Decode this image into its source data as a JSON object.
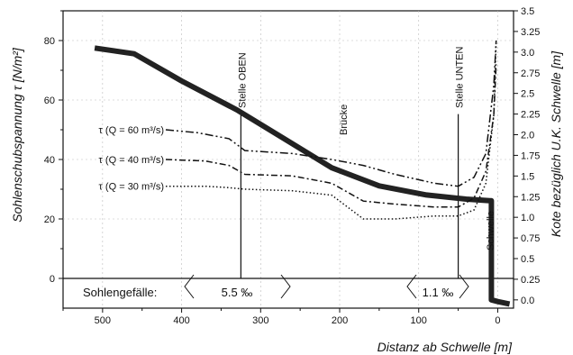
{
  "chart_data": {
    "type": "line",
    "xlabel": "Distanz ab Schwelle  [m]",
    "ylabel_left": "Sohlenschubspannung τ  [N/m²]",
    "ylabel_right": "Kote bezüglich U.K. Schwelle  [m]",
    "xlim": [
      550,
      -20
    ],
    "ylim_left": [
      -10,
      90
    ],
    "ylim_right": [
      -0.1,
      3.5
    ],
    "x_ticks": [
      500,
      400,
      300,
      200,
      100,
      0
    ],
    "y_ticks_left": [
      0,
      20,
      40,
      60,
      80
    ],
    "y_ticks_right": [
      "0.0",
      "0.25",
      "0.5",
      "0.75",
      "1.0",
      "1.25",
      "1.5",
      "1.75",
      "2.0",
      "2.25",
      "2.5",
      "2.75",
      "3.0",
      "3.25",
      "3.5"
    ],
    "grid": true,
    "series": [
      {
        "name": "",
        "axis": "right",
        "style": "thick",
        "x": [
          510,
          460,
          400,
          330,
          270,
          210,
          150,
          90,
          40,
          10,
          8,
          8,
          0,
          -15
        ],
        "y": [
          3.05,
          2.98,
          2.65,
          2.3,
          1.95,
          1.6,
          1.38,
          1.27,
          1.22,
          1.2,
          1.2,
          0.0,
          -0.02,
          -0.05
        ]
      },
      {
        "name": "τ (Q = 60 m³/s)",
        "axis": "left",
        "style": "dash-dot-dot",
        "x": [
          420,
          380,
          340,
          320,
          260,
          210,
          170,
          130,
          80,
          50,
          30,
          15,
          5,
          2
        ],
        "y": [
          50,
          49,
          47,
          43,
          42,
          40,
          38,
          35,
          32,
          31,
          34,
          42,
          65,
          80
        ]
      },
      {
        "name": "τ (Q = 40 m³/s)",
        "axis": "left",
        "style": "dash-dot",
        "x": [
          420,
          370,
          340,
          320,
          260,
          210,
          170,
          130,
          80,
          50,
          30,
          15,
          5,
          2
        ],
        "y": [
          40,
          39.5,
          38,
          35,
          34.5,
          32,
          26,
          25,
          24,
          24,
          27,
          36,
          55,
          72
        ]
      },
      {
        "name": "τ (Q = 30 m³/s)",
        "axis": "left",
        "style": "dotted",
        "x": [
          420,
          370,
          340,
          320,
          260,
          210,
          170,
          130,
          80,
          50,
          30,
          15,
          5,
          2
        ],
        "y": [
          31,
          31,
          30.5,
          30,
          29.5,
          28,
          20,
          20,
          21,
          21,
          23,
          32,
          55,
          80
        ]
      }
    ],
    "vertical_lines": [
      {
        "x": 325,
        "label": "Stelle OBEN"
      },
      {
        "x": 50,
        "label": "Stelle UNTEN"
      }
    ],
    "annotations": {
      "bruecke": "Brücke",
      "schwelle": "Schwelle"
    },
    "gradient_row": {
      "label": "Sohlengefälle:",
      "values": [
        "5.5 ‰",
        "1.1 ‰"
      ]
    }
  }
}
